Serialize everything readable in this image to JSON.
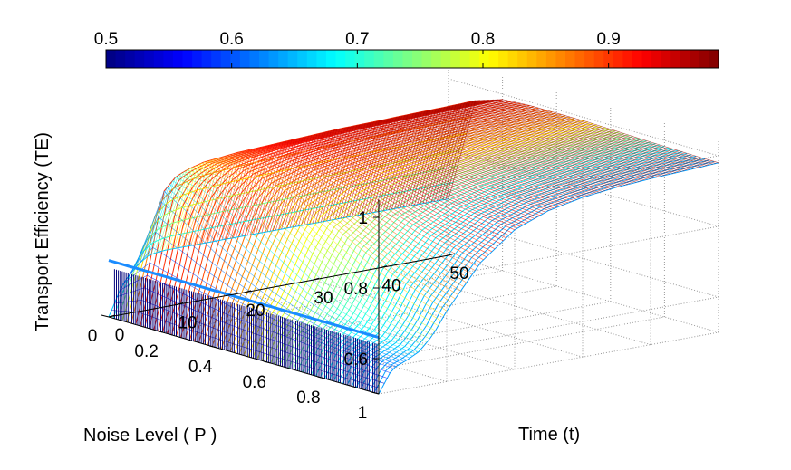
{
  "chart_data": {
    "type": "surface",
    "title": "",
    "xlabel": "Time (t)",
    "ylabel": "Noise Level ( P )",
    "zlabel": "Transport Efficiency (TE)",
    "x_ticks": [
      "0",
      "10",
      "20",
      "30",
      "40",
      "50"
    ],
    "y_ticks": [
      "0",
      "0.2",
      "0.4",
      "0.6",
      "0.8",
      "1"
    ],
    "z_ticks": [
      "0.6",
      "0.8",
      "1"
    ],
    "xlim": [
      0,
      50
    ],
    "ylim": [
      0,
      1
    ],
    "zlim": [
      0.5,
      1.05
    ],
    "grid": true,
    "colormap": "jet",
    "colorbar": {
      "location": "top",
      "range": [
        0.5,
        1.0
      ],
      "ticks": [
        "0.5",
        "0.6",
        "0.7",
        "0.8",
        "0.9"
      ]
    },
    "noise_levels": [
      0,
      0.1,
      0.2,
      0.3,
      0.4,
      0.5,
      0.6,
      0.7,
      0.8,
      0.9,
      1.0
    ],
    "time_points": [
      0,
      2,
      4,
      6,
      8,
      10,
      15,
      20,
      25,
      30,
      35,
      40,
      45,
      50
    ],
    "te_values": [
      [
        0.5,
        0.585,
        0.63,
        0.655,
        0.66,
        0.66,
        0.66,
        0.66,
        0.66,
        0.66,
        0.66,
        0.66,
        0.66,
        0.66
      ],
      [
        0.5,
        0.66,
        0.86,
        0.9,
        0.915,
        0.925,
        0.935,
        0.94,
        0.945,
        0.95,
        0.952,
        0.955,
        0.957,
        0.96
      ],
      [
        0.5,
        0.64,
        0.81,
        0.89,
        0.92,
        0.94,
        0.955,
        0.965,
        0.97,
        0.975,
        0.978,
        0.98,
        0.982,
        0.985
      ],
      [
        0.5,
        0.62,
        0.75,
        0.85,
        0.9,
        0.93,
        0.955,
        0.968,
        0.975,
        0.98,
        0.983,
        0.985,
        0.987,
        0.99
      ],
      [
        0.5,
        0.605,
        0.7,
        0.8,
        0.87,
        0.91,
        0.945,
        0.962,
        0.972,
        0.978,
        0.982,
        0.985,
        0.987,
        0.99
      ],
      [
        0.5,
        0.595,
        0.66,
        0.75,
        0.83,
        0.88,
        0.93,
        0.955,
        0.968,
        0.975,
        0.98,
        0.983,
        0.986,
        0.99
      ],
      [
        0.5,
        0.588,
        0.63,
        0.7,
        0.78,
        0.84,
        0.91,
        0.945,
        0.96,
        0.97,
        0.976,
        0.98,
        0.984,
        0.988
      ],
      [
        0.5,
        0.58,
        0.61,
        0.66,
        0.73,
        0.8,
        0.885,
        0.93,
        0.952,
        0.965,
        0.972,
        0.977,
        0.981,
        0.985
      ],
      [
        0.5,
        0.575,
        0.6,
        0.63,
        0.69,
        0.76,
        0.86,
        0.915,
        0.944,
        0.96,
        0.968,
        0.974,
        0.979,
        0.983
      ],
      [
        0.5,
        0.57,
        0.59,
        0.61,
        0.66,
        0.73,
        0.84,
        0.905,
        0.938,
        0.955,
        0.965,
        0.972,
        0.977,
        0.981
      ],
      [
        0.5,
        0.565,
        0.58,
        0.6,
        0.64,
        0.7,
        0.82,
        0.895,
        0.932,
        0.952,
        0.963,
        0.97,
        0.975,
        0.98
      ]
    ]
  }
}
